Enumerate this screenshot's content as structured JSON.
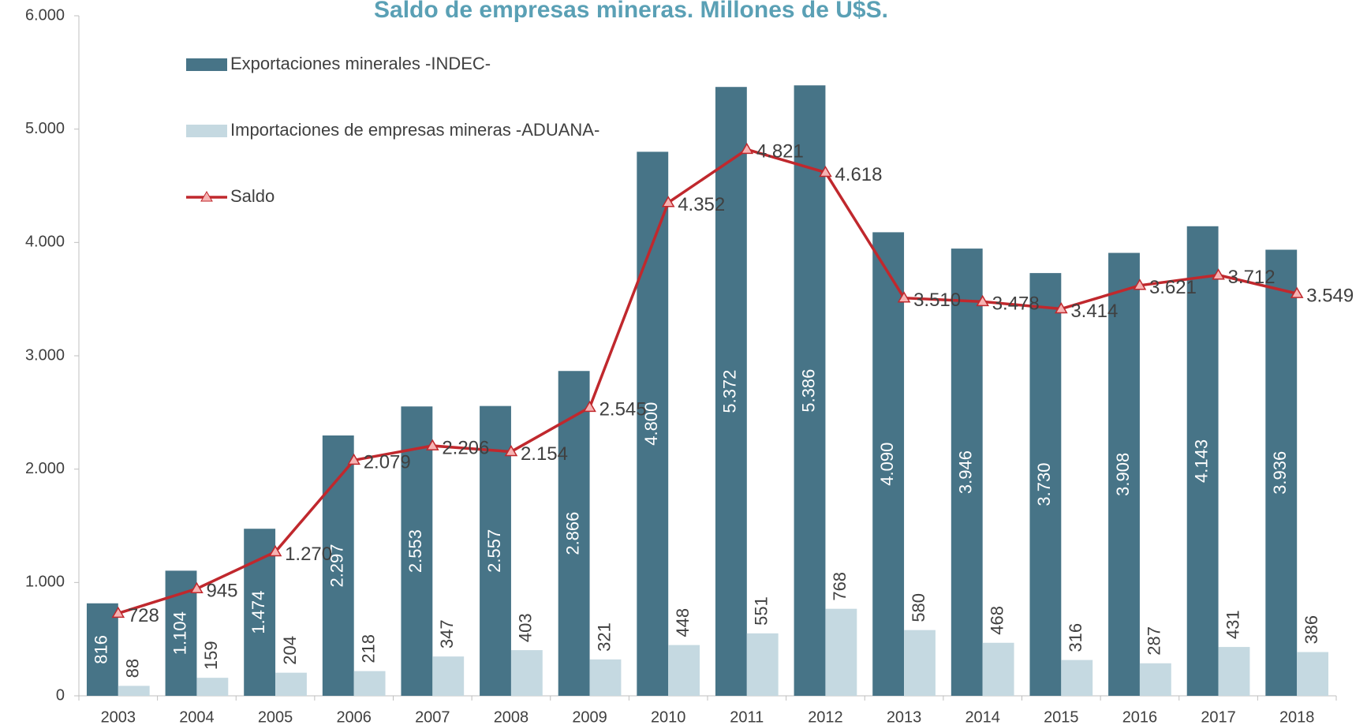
{
  "chart_data": {
    "type": "bar_line",
    "title": "Saldo de empresas mineras. Millones de U$S.",
    "categories": [
      "2003",
      "2004",
      "2005",
      "2006",
      "2007",
      "2008",
      "2009",
      "2010",
      "2011",
      "2012",
      "2013",
      "2014",
      "2015",
      "2016",
      "2017",
      "2018"
    ],
    "series": [
      {
        "name": "Exportaciones minerales -INDEC-",
        "type": "bar",
        "color": "#477487",
        "values": [
          816,
          1104,
          1474,
          2297,
          2553,
          2557,
          2866,
          4800,
          5372,
          5386,
          4090,
          3946,
          3730,
          3908,
          4143,
          3936
        ],
        "value_labels": [
          "816",
          "1.104",
          "1.474",
          "2.297",
          "2.553",
          "2.557",
          "2.866",
          "4.800",
          "5.372",
          "5.386",
          "4.090",
          "3.946",
          "3.730",
          "3.908",
          "4.143",
          "3.936"
        ]
      },
      {
        "name": "Importaciones de empresas mineras -ADUANA-",
        "type": "bar",
        "color": "#c5d9e1",
        "values": [
          88,
          159,
          204,
          218,
          347,
          403,
          321,
          448,
          551,
          768,
          580,
          468,
          316,
          287,
          431,
          386
        ]
      },
      {
        "name": "Saldo",
        "type": "line",
        "color": "#c0282d",
        "values": [
          728,
          945,
          1270,
          2079,
          2206,
          2154,
          2545,
          4352,
          4821,
          4618,
          3510,
          3478,
          3414,
          3621,
          3712,
          3549
        ],
        "value_labels": [
          "728",
          "945",
          "1.270",
          "2.079",
          "2.206",
          "2.154",
          "2.545",
          "4.352",
          "4.821",
          "4.618",
          "3.510",
          "3.478",
          "3.414",
          "3.621",
          "3.712",
          "3.549"
        ]
      }
    ],
    "ylim": [
      0,
      6000
    ],
    "yticks": [
      0,
      {
        "value": 1000,
        "label": "1.000"
      },
      {
        "value": 2000,
        "label": "2.000"
      },
      {
        "value": 3000,
        "label": "3.000"
      },
      {
        "value": 4000,
        "label": "4.000"
      },
      {
        "value": 5000,
        "label": "5.000"
      },
      {
        "value": 6000,
        "label": "6.000"
      }
    ],
    "grid": false
  }
}
